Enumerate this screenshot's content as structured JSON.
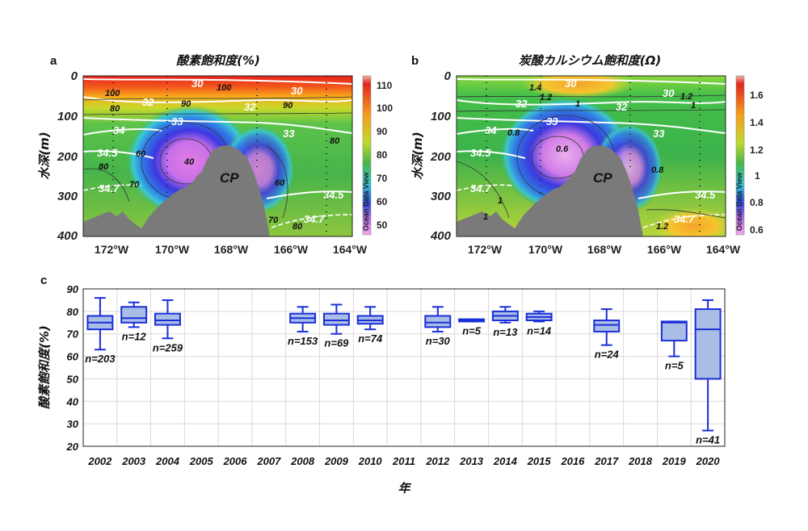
{
  "panel_a": {
    "letter": "a",
    "title": "酸素飽和度(%)",
    "ylabel": "水深(m)",
    "yticks": [
      "0",
      "100",
      "200",
      "300",
      "400"
    ],
    "xticks": [
      "172°W",
      "170°W",
      "168°W",
      "166°W",
      "164°W"
    ],
    "colorbar": {
      "ticks": [
        "110",
        "100",
        "90",
        "80",
        "70",
        "60",
        "50"
      ],
      "label": "Ocean Data View"
    },
    "white_contours": [
      "30",
      "32",
      "33",
      "34",
      "34.5",
      "34.7",
      "30",
      "32",
      "33",
      "34.5",
      "34.7"
    ],
    "black_contours": [
      "100",
      "100",
      "90",
      "80",
      "90",
      "80",
      "60",
      "40",
      "70",
      "80",
      "60",
      "70",
      "80"
    ],
    "cp_label": "CP"
  },
  "panel_b": {
    "letter": "b",
    "title": "炭酸カルシウム飽和度(Ω)",
    "ylabel": "水深(m)",
    "yticks": [
      "0",
      "100",
      "200",
      "300",
      "400"
    ],
    "xticks": [
      "172°W",
      "170°W",
      "168°W",
      "166°W",
      "164°W"
    ],
    "colorbar": {
      "ticks": [
        "1.6",
        "1.4",
        "1.2",
        "1",
        "0.8",
        "0.6"
      ],
      "label": "Ocean Data View"
    },
    "white_contours": [
      "30",
      "32",
      "33",
      "34",
      "34.5",
      "34.7",
      "30",
      "32",
      "33",
      "34.5",
      "34.7"
    ],
    "black_contours": [
      "1.4",
      "1.2",
      "1",
      "1",
      "1.2",
      "0.8",
      "0.6",
      "0.8",
      "1",
      "1",
      "1.2"
    ],
    "cp_label": "CP"
  },
  "chart_data": [
    {
      "panel": "c",
      "type": "box",
      "ylabel": "酸素飽和度(%)",
      "xlabel": "年",
      "ylim": [
        20,
        90
      ],
      "yticks": [
        20,
        30,
        40,
        50,
        60,
        70,
        80,
        90
      ],
      "categories": [
        "2002",
        "2003",
        "2004",
        "2005",
        "2006",
        "2007",
        "2008",
        "2009",
        "2010",
        "2011",
        "2012",
        "2013",
        "2014",
        "2015",
        "2016",
        "2017",
        "2018",
        "2019",
        "2020"
      ],
      "boxes": [
        {
          "year": "2002",
          "min": 63,
          "q1": 72,
          "median": 75,
          "q3": 78,
          "max": 86,
          "n_label": "n=203"
        },
        {
          "year": "2003",
          "min": 73,
          "q1": 75,
          "median": 77,
          "q3": 82,
          "max": 84,
          "n_label": "n=12"
        },
        {
          "year": "2004",
          "min": 68,
          "q1": 74,
          "median": 76,
          "q3": 79,
          "max": 85,
          "n_label": "n=259"
        },
        {
          "year": "2008",
          "min": 71,
          "q1": 75,
          "median": 77,
          "q3": 79,
          "max": 82,
          "n_label": "n=153"
        },
        {
          "year": "2009",
          "min": 70,
          "q1": 74,
          "median": 76,
          "q3": 79,
          "max": 83,
          "n_label": "n=69"
        },
        {
          "year": "2010",
          "min": 72,
          "q1": 74.5,
          "median": 76,
          "q3": 78,
          "max": 82,
          "n_label": "n=74"
        },
        {
          "year": "2012",
          "min": 71,
          "q1": 73,
          "median": 75,
          "q3": 78,
          "max": 82,
          "n_label": "n=30"
        },
        {
          "year": "2013",
          "min": 75.5,
          "q1": 75.5,
          "median": 76,
          "q3": 76.5,
          "max": 76.5,
          "n_label": "n=5"
        },
        {
          "year": "2014",
          "min": 75,
          "q1": 76,
          "median": 78,
          "q3": 80,
          "max": 82,
          "n_label": "n=13"
        },
        {
          "year": "2015",
          "min": 75.5,
          "q1": 76,
          "median": 77.5,
          "q3": 79,
          "max": 80,
          "n_label": "n=14"
        },
        {
          "year": "2017",
          "min": 65,
          "q1": 71,
          "median": 74,
          "q3": 76,
          "max": 81,
          "n_label": "n=24"
        },
        {
          "year": "2019",
          "min": 60,
          "q1": 67,
          "median": 75,
          "q3": 75.5,
          "max": 75.5,
          "n_label": "n=5"
        },
        {
          "year": "2020",
          "min": 27,
          "q1": 50,
          "median": 72,
          "q3": 81,
          "max": 85,
          "n_label": "n=41"
        }
      ],
      "colors": {
        "box_fill": "#a9bde6",
        "box_stroke": "#1a2ed8"
      },
      "letter": "c"
    }
  ]
}
